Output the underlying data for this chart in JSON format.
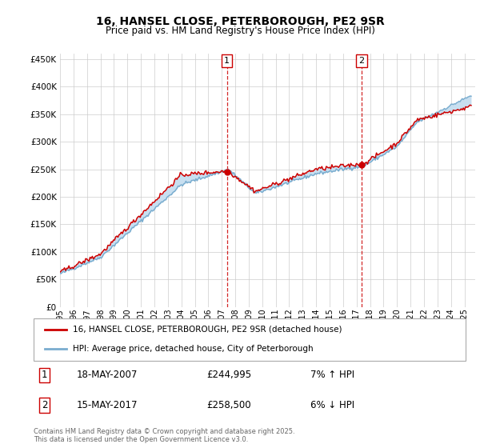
{
  "title": "16, HANSEL CLOSE, PETERBOROUGH, PE2 9SR",
  "subtitle": "Price paid vs. HM Land Registry's House Price Index (HPI)",
  "legend_label1": "16, HANSEL CLOSE, PETERBOROUGH, PE2 9SR (detached house)",
  "legend_label2": "HPI: Average price, detached house, City of Peterborough",
  "annotation1_num": "1",
  "annotation1_date": "18-MAY-2007",
  "annotation1_price": "£244,995",
  "annotation1_hpi": "7% ↑ HPI",
  "annotation2_num": "2",
  "annotation2_date": "15-MAY-2017",
  "annotation2_price": "£258,500",
  "annotation2_hpi": "6% ↓ HPI",
  "vline1_x": 2007.38,
  "vline2_x": 2017.38,
  "sale1_x": 2007.38,
  "sale1_y": 244995,
  "sale2_x": 2017.38,
  "sale2_y": 258500,
  "footer": "Contains HM Land Registry data © Crown copyright and database right 2025.\nThis data is licensed under the Open Government Licence v3.0.",
  "red_color": "#cc0000",
  "blue_color": "#7aadcf",
  "blue_fill_color": "#c8dff0",
  "ylim_min": 0,
  "ylim_max": 460000,
  "xlim_min": 1995,
  "xlim_max": 2025.8,
  "yticks": [
    0,
    50000,
    100000,
    150000,
    200000,
    250000,
    300000,
    350000,
    400000,
    450000
  ]
}
